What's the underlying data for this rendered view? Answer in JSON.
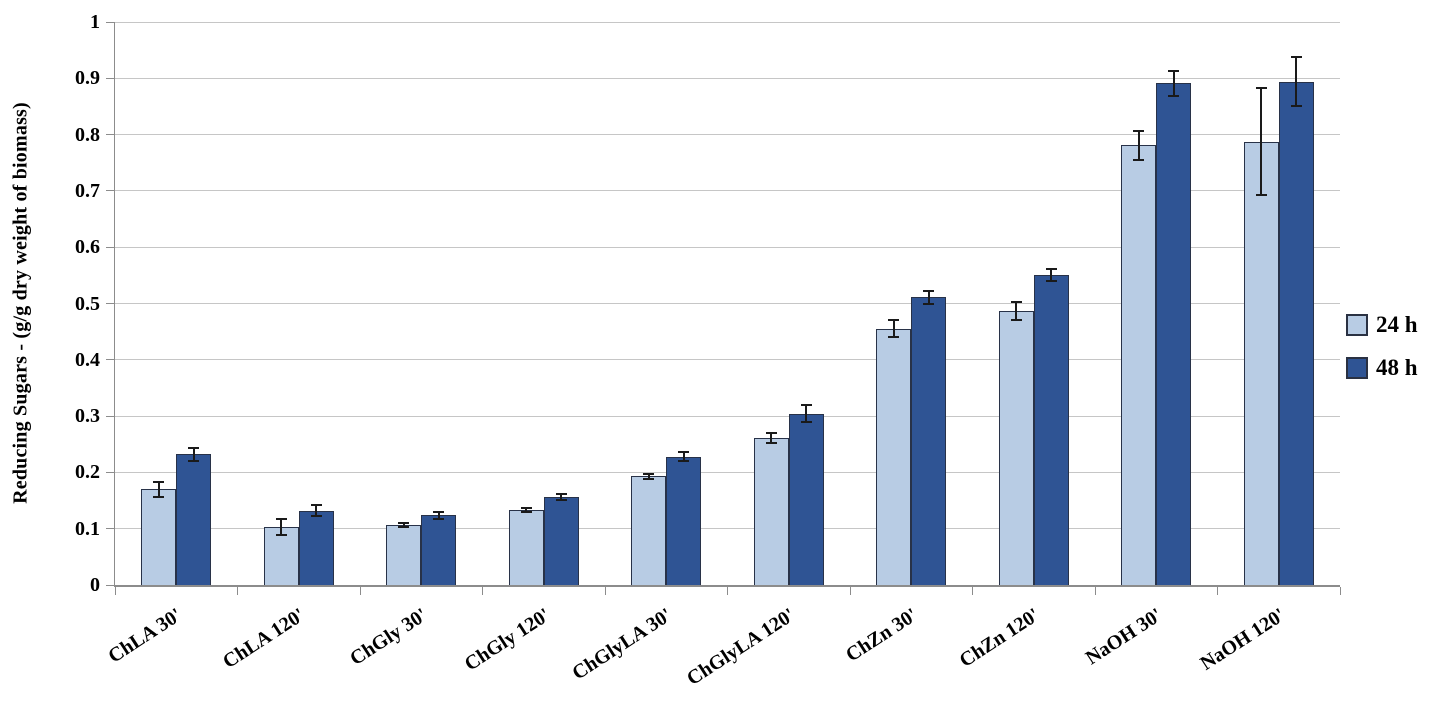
{
  "chart_data": {
    "type": "bar",
    "title": "",
    "xlabel": "",
    "ylabel": "Reducing Sugars - (g/g dry weight of biomass)",
    "ylim": [
      0,
      1
    ],
    "ytick_step": 0.1,
    "ytick_labels": [
      "0",
      "0.1",
      "0.2",
      "0.3",
      "0.4",
      "0.5",
      "0.6",
      "0.7",
      "0.8",
      "0.9",
      "1"
    ],
    "grid": "horizontal",
    "legend_position": "right",
    "categories": [
      "ChLA 30'",
      "ChLA 120'",
      "ChGly 30'",
      "ChGly 120'",
      "ChGlyLA 30'",
      "ChGlyLA 120'",
      "ChZn 30'",
      "ChZn 120'",
      "NaOH 30'",
      "NaOH 120'"
    ],
    "series": [
      {
        "name": "24 h",
        "color": "#b8cce4",
        "values": [
          0.17,
          0.103,
          0.107,
          0.133,
          0.193,
          0.261,
          0.455,
          0.487,
          0.781,
          0.787
        ],
        "errors": [
          0.013,
          0.014,
          0.004,
          0.004,
          0.005,
          0.009,
          0.015,
          0.016,
          0.026,
          0.095
        ]
      },
      {
        "name": "48 h",
        "color": "#2f5494",
        "values": [
          0.232,
          0.132,
          0.124,
          0.156,
          0.228,
          0.304,
          0.511,
          0.551,
          0.891,
          0.894
        ],
        "errors": [
          0.012,
          0.01,
          0.006,
          0.005,
          0.008,
          0.015,
          0.012,
          0.011,
          0.022,
          0.043
        ]
      }
    ]
  },
  "colors": {
    "bar_border": "#283248",
    "gridline": "#c6c6c6",
    "axis": "#8c8c8c",
    "error_bar": "#1a1a1a",
    "text": "#000000"
  }
}
